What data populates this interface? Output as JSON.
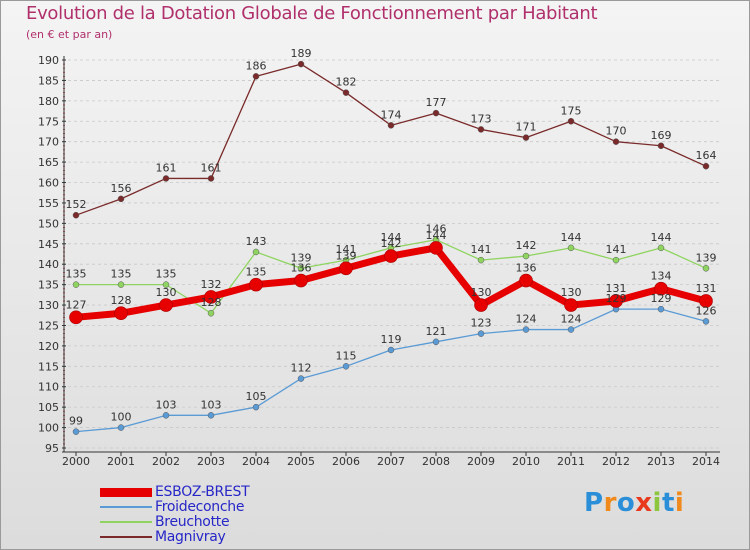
{
  "header": {
    "title": "Evolution de la Dotation Globale de Fonctionnement par Habitant",
    "subtitle": "(en € et par an)"
  },
  "logo": {
    "text": "Proxiti"
  },
  "colors": {
    "background_top": "#f4f4f4",
    "background_bottom": "#dcdcdc",
    "grid": "#c8c8c8",
    "axis": "#333333",
    "title": "#b0306c",
    "legend_text": "#2727c8"
  },
  "chart_data": {
    "type": "line",
    "title": "Evolution de la Dotation Globale de Fonctionnement par Habitant",
    "subtitle": "(en € et par an)",
    "xlabel": "",
    "ylabel": "",
    "x": [
      2000,
      2001,
      2002,
      2003,
      2004,
      2005,
      2006,
      2007,
      2008,
      2009,
      2010,
      2011,
      2012,
      2013,
      2014
    ],
    "ylim": [
      95,
      190
    ],
    "ytick_step": 5,
    "grid": "horizontal dashed",
    "legend_position": "bottom-left",
    "series": [
      {
        "name": "ESBOZ-BREST",
        "color": "#e60000",
        "width": 7,
        "values": [
          127,
          128,
          130,
          132,
          135,
          136,
          139,
          142,
          144,
          130,
          136,
          130,
          131,
          134,
          131
        ]
      },
      {
        "name": "Froideconche",
        "color": "#5b9bd5",
        "width": 1.3,
        "values": [
          99,
          100,
          103,
          103,
          105,
          112,
          115,
          119,
          121,
          123,
          124,
          124,
          129,
          129,
          126
        ]
      },
      {
        "name": "Breuchotte",
        "color": "#8fd460",
        "width": 1.3,
        "values": [
          135,
          135,
          135,
          128,
          143,
          139,
          141,
          144,
          146,
          141,
          142,
          144,
          141,
          144,
          139
        ]
      },
      {
        "name": "Magnivray",
        "color": "#7a2a2a",
        "width": 1.3,
        "values": [
          152,
          156,
          161,
          161,
          186,
          189,
          182,
          174,
          177,
          173,
          171,
          175,
          170,
          169,
          164
        ]
      }
    ]
  }
}
